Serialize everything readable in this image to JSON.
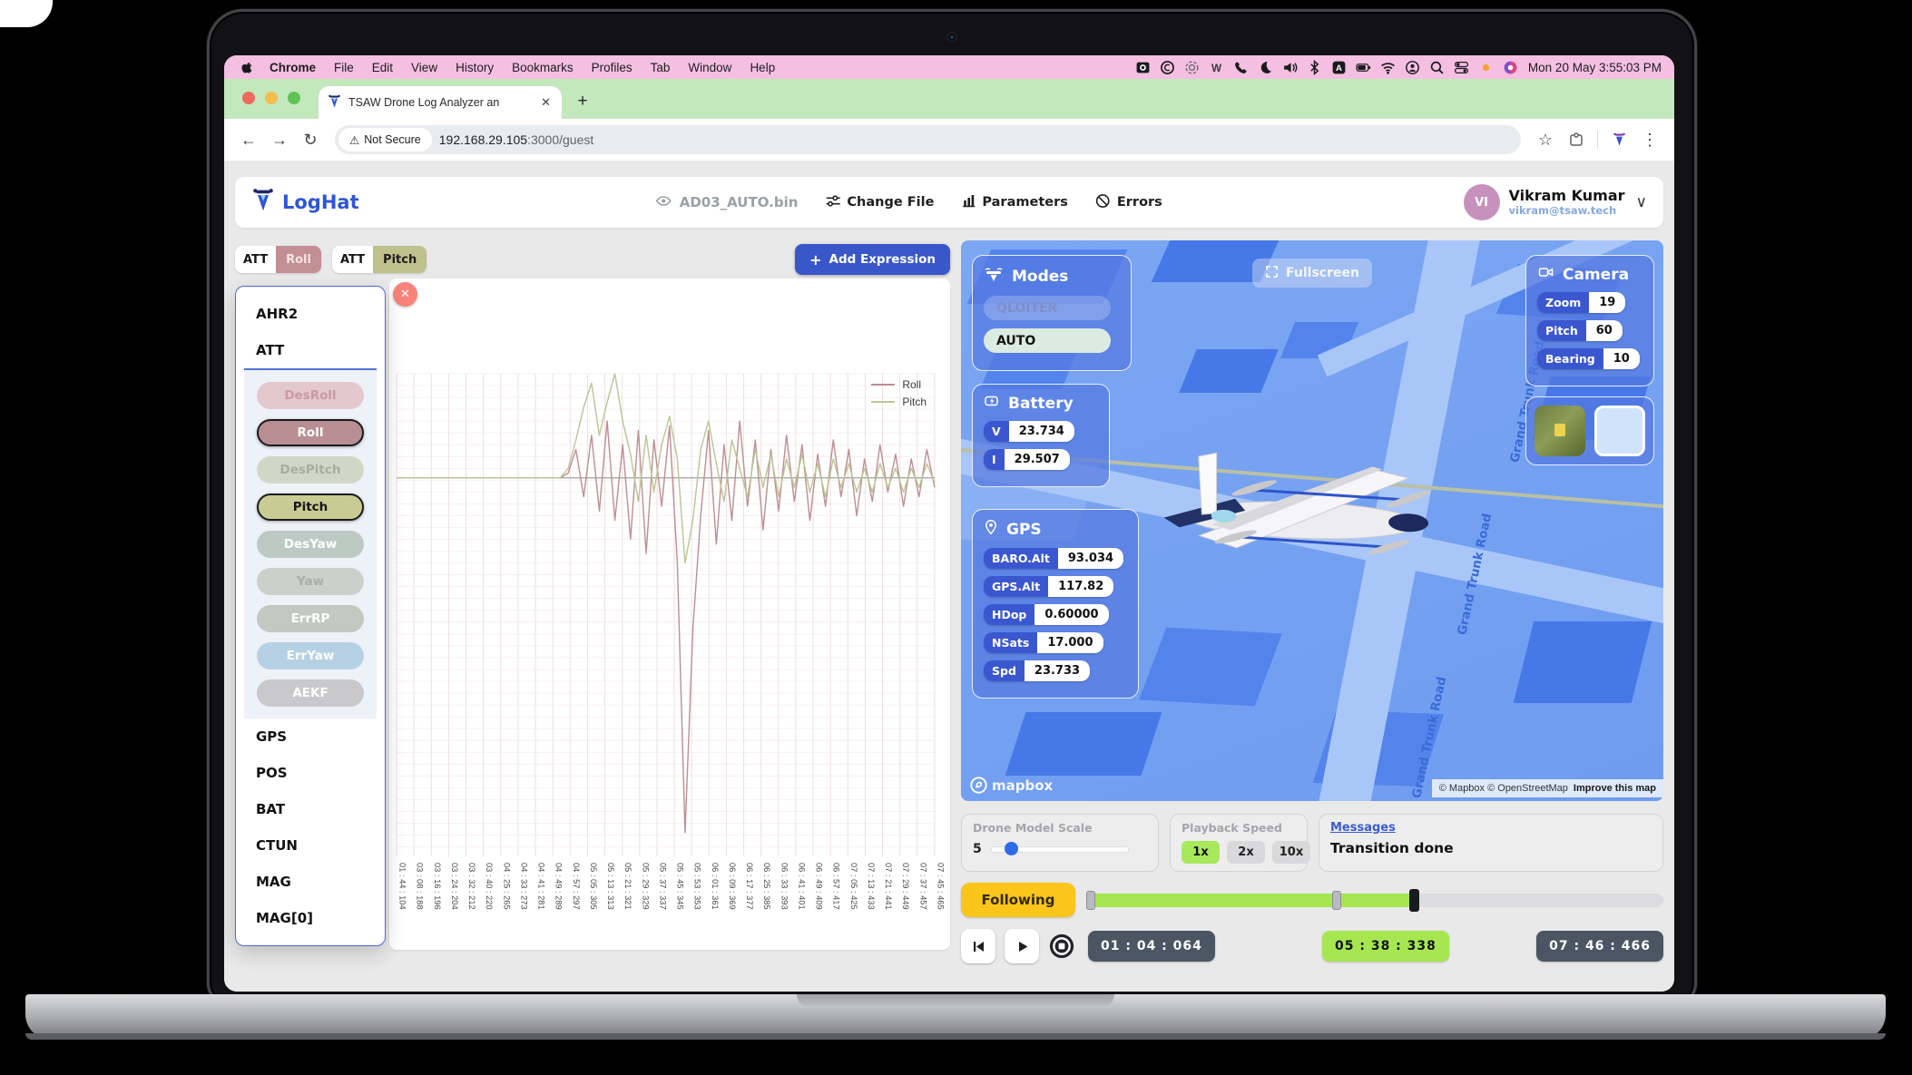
{
  "menubar": {
    "app_name": "Chrome",
    "items": [
      "File",
      "Edit",
      "View",
      "History",
      "Bookmarks",
      "Profiles",
      "Tab",
      "Window",
      "Help"
    ],
    "status_icons": [
      "screenshot-icon",
      "adobe-cc-icon",
      "spiral-icon",
      "webex-icon",
      "phone-icon",
      "moon-icon",
      "volume-icon",
      "bluetooth-icon",
      "input-source-icon",
      "battery-icon",
      "wifi-icon",
      "facetime-icon",
      "spotlight-icon",
      "control-center-icon",
      "notification-dot-icon",
      "color-profile-icon"
    ],
    "clock": "Mon 20 May  3:55:03 PM"
  },
  "browser": {
    "tab_title": "TSAW Drone Log Analyzer an",
    "close_tab": "✕",
    "new_tab": "+",
    "back": "←",
    "forward": "→",
    "reload": "↻",
    "security_chip": "Not Secure",
    "warn": "⚠",
    "url_host": "192.168.29.105",
    "url_rest": ":3000/guest",
    "star": "☆",
    "kebab": "⋮"
  },
  "header": {
    "brand": "LogHat",
    "file_name": "AD03_AUTO.bin",
    "nav": [
      {
        "label": "Change File"
      },
      {
        "label": "Parameters"
      },
      {
        "label": "Errors"
      }
    ],
    "user": {
      "initials": "VI",
      "name": "Vikram Kumar",
      "email": "vikram@tsaw.tech",
      "chevron": "∨"
    }
  },
  "plot_tabs": [
    {
      "group": "ATT",
      "field": "Roll",
      "bg": "#c28f94",
      "fg": "#f6e3e5"
    },
    {
      "group": "ATT",
      "field": "Pitch",
      "bg": "#bdc28d",
      "fg": "#1c1c1c"
    }
  ],
  "add_expression_label": "Add Expression",
  "close_chart": "✕",
  "dropdown": {
    "groups_top": [
      "AHR2",
      "ATT"
    ],
    "att_fields": [
      {
        "label": "DesRoll",
        "bg": "#e3c9cd",
        "fg": "#cb9aa3",
        "selected": false
      },
      {
        "label": "Roll",
        "bg": "#b88e93",
        "fg": "#ffffff",
        "selected": true
      },
      {
        "label": "DesPitch",
        "bg": "#cfd8c7",
        "fg": "#a3b09c",
        "selected": false
      },
      {
        "label": "Pitch",
        "bg": "#c9cc92",
        "fg": "#161616",
        "selected": true
      },
      {
        "label": "DesYaw",
        "bg": "#bdcac4",
        "fg": "#ffffff",
        "selected": false
      },
      {
        "label": "Yaw",
        "bg": "#cad0ca",
        "fg": "#a8b0a8",
        "selected": false
      },
      {
        "label": "ErrRP",
        "bg": "#c3c9c0",
        "fg": "#ffffff",
        "selected": false
      },
      {
        "label": "ErrYaw",
        "bg": "#b7d1e4",
        "fg": "#ffffff",
        "selected": false
      },
      {
        "label": "AEKF",
        "bg": "#c9c9cc",
        "fg": "#ffffff",
        "selected": false
      }
    ],
    "groups_bottom": [
      "GPS",
      "POS",
      "BAT",
      "CTUN",
      "MAG",
      "MAG[0]"
    ]
  },
  "chart_data": {
    "type": "line",
    "title": "",
    "xlabel": "",
    "ylabel": "",
    "ylim": [
      -80,
      22
    ],
    "grid": true,
    "legend_position": "right-top",
    "x_labels": [
      "01 : 44 : 104",
      "03 : 08 : 188",
      "03 : 16 : 196",
      "03 : 24 : 204",
      "03 : 32 : 212",
      "03 : 40 : 220",
      "04 : 25 : 265",
      "04 : 33 : 273",
      "04 : 41 : 281",
      "04 : 49 : 289",
      "04 : 57 : 297",
      "05 : 05 : 305",
      "05 : 13 : 313",
      "05 : 21 : 321",
      "05 : 29 : 329",
      "05 : 37 : 337",
      "05 : 45 : 345",
      "05 : 53 : 353",
      "06 : 01 : 361",
      "06 : 09 : 369",
      "06 : 17 : 377",
      "06 : 25 : 385",
      "06 : 33 : 393",
      "06 : 41 : 401",
      "06 : 49 : 409",
      "06 : 57 : 417",
      "07 : 05 : 425",
      "07 : 13 : 433",
      "07 : 21 : 441",
      "07 : 29 : 449",
      "07 : 37 : 457",
      "07 : 45 : 465"
    ],
    "series": [
      {
        "name": "Roll",
        "color": "#bd8e93",
        "values": [
          0,
          0,
          0,
          0,
          0,
          0,
          0,
          0,
          0,
          0,
          0,
          0,
          0,
          0,
          0,
          0,
          0,
          0,
          0,
          0,
          0,
          0,
          1,
          6,
          -4,
          9,
          -7,
          12,
          -9,
          7,
          -13,
          10,
          -16,
          8,
          -6,
          11,
          -18,
          -75,
          -32,
          -8,
          10,
          -14,
          7,
          -9,
          12,
          -6,
          8,
          -11,
          6,
          -7,
          9,
          -5,
          7,
          -9,
          5,
          -6,
          8,
          -4,
          6,
          -8,
          4,
          -5,
          7,
          -3,
          5,
          -6,
          4,
          -4,
          6,
          -2
        ]
      },
      {
        "name": "Pitch",
        "color": "#bcc495",
        "values": [
          0,
          0,
          0,
          0,
          0,
          0,
          0,
          0,
          0,
          0,
          0,
          0,
          0,
          0,
          0,
          0,
          0,
          0,
          0,
          0,
          0,
          0,
          2,
          8,
          15,
          20,
          9,
          16,
          22,
          12,
          5,
          -5,
          9,
          -3,
          7,
          13,
          4,
          -18,
          -9,
          6,
          12,
          3,
          -5,
          8,
          2,
          -4,
          6,
          -2,
          5,
          -4,
          4,
          -2,
          5,
          -3,
          3,
          -4,
          4,
          -2,
          3,
          -3,
          2,
          -3,
          3,
          -2,
          2,
          -3,
          2,
          -2,
          3,
          -1
        ]
      }
    ]
  },
  "map": {
    "fullscreen_label": "Fullscreen",
    "modes": {
      "title": "Modes",
      "options": [
        {
          "label": "QLOITER",
          "active": false
        },
        {
          "label": "AUTO",
          "active": true
        }
      ]
    },
    "battery": {
      "title": "Battery",
      "rows": [
        {
          "label": "V",
          "value": "23.734"
        },
        {
          "label": "I",
          "value": "29.507"
        }
      ]
    },
    "gps": {
      "title": "GPS",
      "rows": [
        {
          "label": "BARO.Alt",
          "value": "93.034"
        },
        {
          "label": "GPS.Alt",
          "value": "117.82"
        },
        {
          "label": "HDop",
          "value": "0.60000"
        },
        {
          "label": "NSats",
          "value": "17.000"
        },
        {
          "label": "Spd",
          "value": "23.733"
        }
      ]
    },
    "camera": {
      "title": "Camera",
      "rows": [
        {
          "label": "Zoom",
          "value": "19"
        },
        {
          "label": "Pitch",
          "value": "60"
        },
        {
          "label": "Bearing",
          "value": "10"
        }
      ]
    },
    "road_label": "Grand Trunk Road",
    "logo_text": "mapbox",
    "attribution": "© Mapbox © OpenStreetMap",
    "improve_link": "Improve this map"
  },
  "controls": {
    "scale": {
      "label": "Drone Model Scale",
      "value": "5"
    },
    "speed": {
      "label": "Playback Speed",
      "options": [
        "1x",
        "2x",
        "10x"
      ],
      "active": "1x"
    },
    "messages": {
      "label": "Messages",
      "text": "Transition done"
    },
    "following_label": "Following",
    "time_start": "01 : 04 : 064",
    "time_current": "05 : 38 : 338",
    "time_end": "07 : 46 : 466"
  }
}
